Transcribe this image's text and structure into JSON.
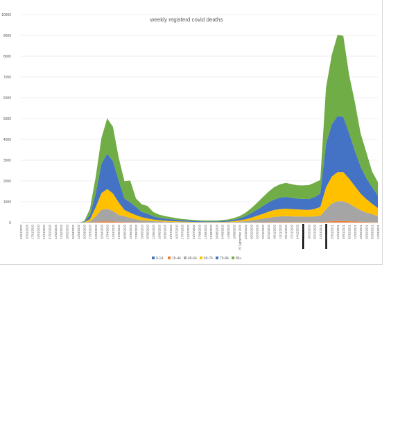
{
  "chart_data": {
    "type": "area",
    "stacked": true,
    "title": "weekly registerd covid deaths",
    "xlabel": "",
    "ylabel": "",
    "ylim": [
      0,
      10000
    ],
    "yticks": [
      0,
      1000,
      2000,
      3000,
      4000,
      5000,
      6000,
      7000,
      8000,
      9000,
      10000
    ],
    "grid": true,
    "legend_position": "bottom",
    "x": [
      "03/01/2020",
      "10/01/2020",
      "17/01/2020",
      "24/01/2020",
      "31/01/2020",
      "07/02/2020",
      "14/02/2020",
      "21/02/2020",
      "28/02/2020",
      "06/03/2020",
      "13/03/2020",
      "20/03/2020",
      "27/03/2020",
      "03/04/2020",
      "10/04/2020",
      "17/04/2020",
      "24/04/2020",
      "01/05/2020",
      "08/05/2020",
      "15/05/2020",
      "22/05/2020",
      "29/05/2020",
      "05/06/2020",
      "12/06/2020",
      "19/06/2020",
      "26/06/2020",
      "03/07/2020",
      "10/07/2020",
      "17/07/2020",
      "24/07/2020",
      "31/07/2020",
      "07/08/2020",
      "14/08/2020",
      "21/08/2020",
      "28/08/2020",
      "04/09/2020",
      "11/09/2020",
      "18/09/2020",
      "25 September 2020",
      "02/10/2020",
      "09/10/2020",
      "16/10/2020",
      "23/10/2020",
      "30/10/2020",
      "06/11/2020",
      "13/11/2020",
      "20/11/2020",
      "27/11/2020",
      "04/12/2020",
      "11/12/2020",
      "18/12/2020",
      "25/12/2020",
      "01/01/2021",
      "08/01/2021",
      "15/01/2021",
      "22/01/2021",
      "29/01/2021",
      "05/02/2021",
      "12/02/2021",
      "19/02/2021",
      "26/02/2021",
      "05/03/2021",
      "12/03/2021"
    ],
    "series": [
      {
        "name": "0-14",
        "color": "#4472c4",
        "values": [
          0,
          0,
          0,
          0,
          0,
          0,
          0,
          0,
          0,
          0,
          0,
          0,
          1,
          2,
          3,
          3,
          2,
          2,
          1,
          1,
          1,
          1,
          0,
          0,
          0,
          0,
          0,
          0,
          0,
          0,
          0,
          0,
          0,
          0,
          0,
          0,
          0,
          0,
          0,
          0,
          0,
          1,
          1,
          1,
          1,
          1,
          1,
          1,
          1,
          1,
          1,
          1,
          1,
          2,
          3,
          3,
          3,
          2,
          2,
          1,
          1,
          1,
          1
        ]
      },
      {
        "name": "15-44",
        "color": "#ed7d31",
        "values": [
          0,
          0,
          0,
          0,
          0,
          0,
          0,
          0,
          0,
          0,
          0,
          2,
          10,
          30,
          60,
          60,
          50,
          35,
          25,
          18,
          12,
          9,
          7,
          5,
          4,
          3,
          2,
          2,
          2,
          1,
          1,
          1,
          1,
          1,
          1,
          2,
          2,
          3,
          4,
          6,
          9,
          12,
          16,
          20,
          24,
          26,
          27,
          26,
          26,
          25,
          24,
          24,
          26,
          40,
          60,
          70,
          70,
          60,
          50,
          40,
          30,
          25,
          20
        ]
      },
      {
        "name": "45-64",
        "color": "#a5a5a5",
        "values": [
          0,
          0,
          0,
          0,
          0,
          0,
          0,
          0,
          0,
          0,
          0,
          5,
          40,
          250,
          550,
          600,
          500,
          330,
          280,
          200,
          140,
          100,
          80,
          60,
          50,
          40,
          30,
          25,
          20,
          15,
          12,
          10,
          8,
          8,
          8,
          10,
          15,
          25,
          40,
          60,
          90,
          130,
          170,
          210,
          250,
          270,
          280,
          270,
          265,
          260,
          255,
          270,
          300,
          600,
          850,
          950,
          950,
          850,
          700,
          550,
          450,
          380,
          280
        ]
      },
      {
        "name": "65-74",
        "color": "#ffc000",
        "values": [
          0,
          0,
          0,
          0,
          0,
          0,
          0,
          0,
          0,
          0,
          0,
          10,
          100,
          450,
          800,
          950,
          850,
          600,
          300,
          250,
          200,
          150,
          110,
          80,
          60,
          50,
          40,
          35,
          30,
          25,
          20,
          15,
          15,
          15,
          15,
          20,
          25,
          40,
          60,
          90,
          130,
          180,
          230,
          290,
          330,
          350,
          360,
          350,
          340,
          330,
          330,
          360,
          420,
          1050,
          1300,
          1400,
          1400,
          1200,
          1000,
          800,
          650,
          500,
          400
        ]
      },
      {
        "name": "75-84",
        "color": "#4472c4",
        "values": [
          0,
          0,
          0,
          0,
          0,
          0,
          0,
          0,
          0,
          0,
          0,
          20,
          200,
          650,
          1400,
          1700,
          1550,
          1050,
          550,
          500,
          400,
          250,
          230,
          150,
          120,
          100,
          90,
          75,
          60,
          50,
          40,
          35,
          30,
          30,
          30,
          40,
          50,
          70,
          100,
          150,
          220,
          290,
          370,
          440,
          500,
          550,
          560,
          540,
          520,
          520,
          520,
          560,
          650,
          2100,
          2500,
          2700,
          2650,
          2200,
          1700,
          1300,
          1000,
          800,
          600
        ]
      },
      {
        "name": "85+",
        "color": "#70ad47",
        "values": [
          0,
          0,
          0,
          0,
          0,
          0,
          0,
          0,
          0,
          0,
          0,
          30,
          300,
          800,
          1250,
          1700,
          1650,
          1100,
          830,
          1050,
          400,
          370,
          370,
          210,
          150,
          120,
          100,
          75,
          60,
          60,
          50,
          45,
          40,
          40,
          40,
          50,
          60,
          80,
          110,
          160,
          240,
          330,
          430,
          520,
          600,
          640,
          680,
          660,
          640,
          650,
          670,
          700,
          650,
          2700,
          3350,
          3900,
          3900,
          2800,
          2350,
          1600,
          1250,
          750,
          640
        ]
      }
    ]
  },
  "annotations": {
    "vertical_markers": [
      "11/12/2020",
      "08/01/2021"
    ]
  },
  "colors": {
    "axis": "#bfbfbf",
    "gridline": "#e6e6e6",
    "text": "#595959",
    "marker": "#000000"
  }
}
